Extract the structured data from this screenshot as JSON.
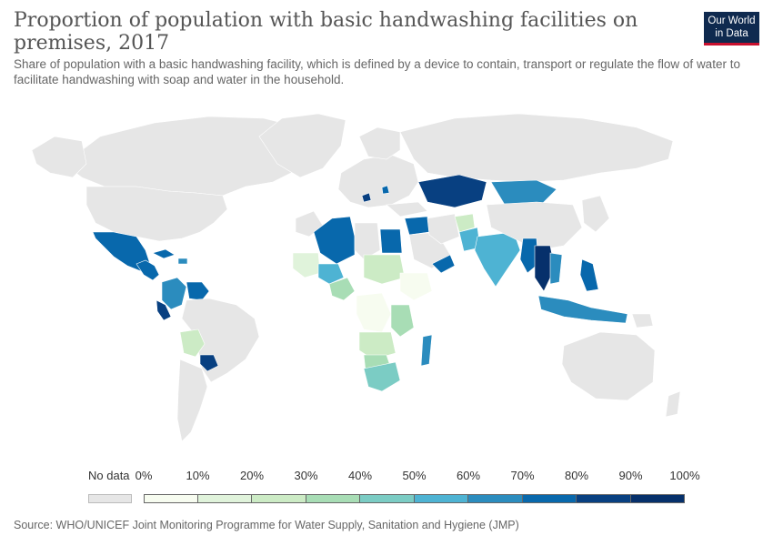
{
  "header": {
    "title": "Proportion of population with basic handwashing facilities on premises, 2017",
    "subtitle": "Share of population with a basic handwashing facility, which is defined by a device to contain, transport or regulate the flow of water to facilitate handwashing with soap and water in the household."
  },
  "logo": {
    "line1": "Our World",
    "line2": "in Data"
  },
  "legend": {
    "no_data_label": "No data",
    "ticks": [
      "0%",
      "10%",
      "20%",
      "30%",
      "40%",
      "50%",
      "60%",
      "70%",
      "80%",
      "90%",
      "100%"
    ],
    "colors": [
      "#f7fcf0",
      "#e0f3db",
      "#ccebc5",
      "#a8ddb5",
      "#7bccc4",
      "#4eb3d3",
      "#2b8cbe",
      "#0868ac",
      "#084081",
      "#06306b"
    ],
    "no_data_color": "#e6e6e6"
  },
  "map_colors": {
    "no_data": "#e6e6e6",
    "water": "#ffffff",
    "border": "#ffffff"
  },
  "source": "Source: WHO/UNICEF Joint Monitoring Programme for Water Supply, Sanitation and Hygiene (JMP)"
}
